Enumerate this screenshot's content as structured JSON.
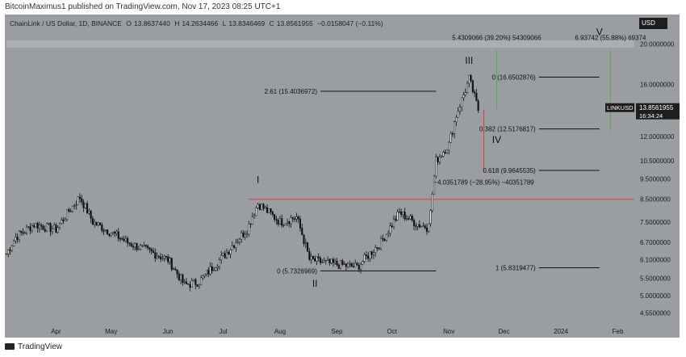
{
  "header": {
    "publisher": "BitcoinMaximus1 published on TradingView.com, Nov 17, 2023 08:25 UTC+1"
  },
  "legend": {
    "symbol": "ChainLink / US Dollar, 1D, BINANCE",
    "open_label": "O",
    "open": "13.8637440",
    "high_label": "H",
    "high": "14.2634466",
    "low_label": "L",
    "low": "13.8346469",
    "close_label": "C",
    "close": "13.8561955",
    "change": "−0.0158047 (−0.11%)"
  },
  "currency": "USD",
  "price_tag": {
    "symbol": "LINKUSD",
    "price": "13.8561955",
    "countdown": "16:34:24"
  },
  "footer": {
    "brand": "TradingView"
  },
  "chart_data": {
    "type": "candlestick",
    "y_scale": "log",
    "ylim": [
      4.3,
      23.5
    ],
    "y_ticks": [
      "20.0000000",
      "16.0000000",
      "14.0000000",
      "12.0000000",
      "10.5000000",
      "9.5000000",
      "8.5000000",
      "7.5000000",
      "6.7000000",
      "6.1000000",
      "5.5000000",
      "5.0000000",
      "4.5500000"
    ],
    "y_tick_values": [
      20,
      16,
      14,
      12,
      10.5,
      9.5,
      8.5,
      7.5,
      6.7,
      6.1,
      5.5,
      5.0,
      4.55
    ],
    "x_ticks": [
      "Apr",
      "May",
      "Jun",
      "Jul",
      "Aug",
      "Sep",
      "Oct",
      "Nov",
      "Dec",
      "2024",
      "Feb"
    ],
    "x_tick_dates": [
      "2023-04-01",
      "2023-05-01",
      "2023-06-01",
      "2023-07-01",
      "2023-08-01",
      "2023-09-01",
      "2023-10-01",
      "2023-11-01",
      "2023-12-01",
      "2024-01-01",
      "2024-02-01"
    ],
    "x_range": [
      "2023-03-05",
      "2024-02-10"
    ],
    "price_anchors": [
      [
        "2023-03-05",
        6.3
      ],
      [
        "2023-03-10",
        6.9
      ],
      [
        "2023-03-20",
        7.4
      ],
      [
        "2023-04-01",
        7.2
      ],
      [
        "2023-04-14",
        8.6
      ],
      [
        "2023-04-21",
        7.5
      ],
      [
        "2023-05-10",
        6.7
      ],
      [
        "2023-06-01",
        6.1
      ],
      [
        "2023-06-10",
        5.3
      ],
      [
        "2023-06-18",
        5.4
      ],
      [
        "2023-07-01",
        6.2
      ],
      [
        "2023-07-14",
        7.2
      ],
      [
        "2023-07-20",
        8.3
      ],
      [
        "2023-08-01",
        7.5
      ],
      [
        "2023-08-10",
        7.7
      ],
      [
        "2023-08-17",
        6.1
      ],
      [
        "2023-08-25",
        6.0
      ],
      [
        "2023-09-12",
        5.85
      ],
      [
        "2023-09-25",
        6.7
      ],
      [
        "2023-10-01",
        7.4
      ],
      [
        "2023-10-05",
        7.9
      ],
      [
        "2023-10-15",
        7.4
      ],
      [
        "2023-10-20",
        7.3
      ],
      [
        "2023-10-22",
        7.9
      ],
      [
        "2023-10-25",
        10.5
      ],
      [
        "2023-11-01",
        11.5
      ],
      [
        "2023-11-05",
        13.5
      ],
      [
        "2023-11-10",
        15.5
      ],
      [
        "2023-11-12",
        16.5
      ],
      [
        "2023-11-17",
        13.86
      ]
    ],
    "horizontal_lines": [
      {
        "price": 8.5,
        "from": "2023-07-15",
        "to": "2024-02-10",
        "color": "#e53935"
      }
    ],
    "fib_levels": [
      {
        "label": "2.61 (15.4036972)",
        "price": 15.4036972,
        "from": "2023-08-23",
        "to": "2023-10-25"
      },
      {
        "label": "0 (5.7326969)",
        "price": 5.7326969,
        "from": "2023-08-23",
        "to": "2023-10-25"
      },
      {
        "label": "0 (16.6502876)",
        "price": 16.6502876,
        "from": "2023-12-20",
        "to": "2024-01-22"
      },
      {
        "label": "0.382 (12.5176817)",
        "price": 12.5176817,
        "from": "2023-12-20",
        "to": "2024-01-22"
      },
      {
        "label": "0.618 (9.9645535)",
        "price": 9.9645535,
        "from": "2023-12-20",
        "to": "2024-01-22"
      },
      {
        "label": "1 (5.8319477)",
        "price": 5.8319477,
        "from": "2023-12-20",
        "to": "2024-01-22"
      }
    ],
    "wave_labels": [
      {
        "text": "I",
        "date": "2023-07-20",
        "price": 9.3
      },
      {
        "text": "II",
        "date": "2023-08-20",
        "price": 5.25
      },
      {
        "text": "III",
        "date": "2023-11-12",
        "price": 17.9
      },
      {
        "text": "IV",
        "date": "2023-11-27",
        "price": 11.6
      },
      {
        "text": "V",
        "date": "2024-01-22",
        "price": 21.0
      }
    ],
    "measurements": [
      {
        "label": "5.4309066 (39.20%) 54309066",
        "date": "2023-11-27",
        "from_price": 13.9,
        "to_price": 19.3,
        "color": "#4caf50"
      },
      {
        "label": "6.93742 (55.88%) 69374",
        "date": "2024-01-28",
        "from_price": 12.4,
        "to_price": 19.3,
        "color": "#4caf50"
      },
      {
        "label": "−4.0351789 (−28.95%) −40351789",
        "date": "2023-11-20",
        "from_price": 13.9,
        "to_price": 9.9,
        "color": "#e53935"
      }
    ]
  }
}
